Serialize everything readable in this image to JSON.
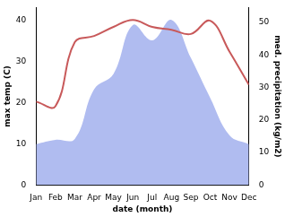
{
  "chart_data": {
    "type": "line",
    "x_label": "date (month)",
    "y_label": "max temp (C)",
    "y2_label": "med. precipitation (kg/m2)",
    "categories": [
      "Jan",
      "Feb",
      "Mar",
      "Apr",
      "May",
      "Jun",
      "Jul",
      "Aug",
      "Sep",
      "Oct",
      "Nov",
      "Dec"
    ],
    "series": [
      {
        "type": "area",
        "axis": "y2",
        "color": "#b0bcf0",
        "values": [
          12.6,
          13.9,
          14.2,
          29.5,
          34.2,
          49.2,
          44.5,
          50.8,
          39.1,
          26.8,
          15.3,
          12.6
        ]
      },
      {
        "type": "line",
        "axis": "y",
        "color": "#c8595a",
        "values": [
          20.2,
          19.1,
          34.6,
          36.1,
          38.3,
          40.0,
          38.3,
          37.6,
          36.6,
          39.8,
          32.3,
          24.3
        ]
      }
    ],
    "ylim": [
      0,
      43
    ],
    "yticks": [
      0,
      10,
      20,
      30,
      40
    ],
    "y2lim": [
      0,
      54.6
    ],
    "y2ticks": [
      0,
      10,
      20,
      30,
      40,
      50
    ],
    "grid": false
  }
}
